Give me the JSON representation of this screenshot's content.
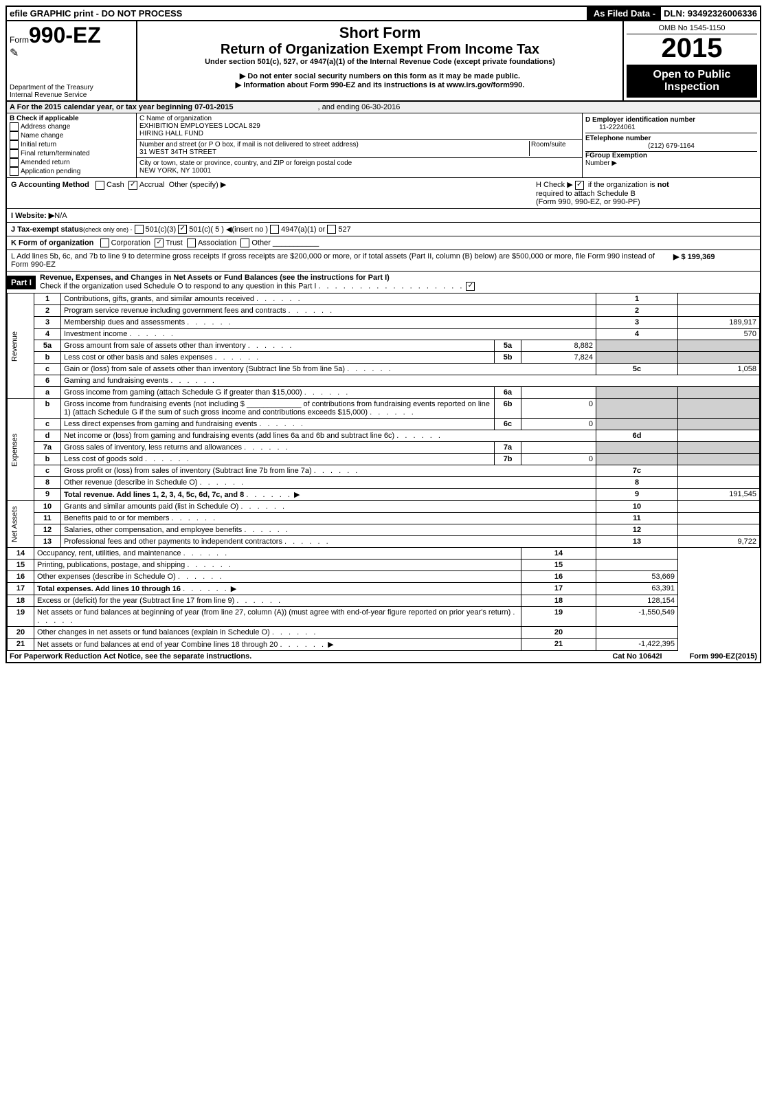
{
  "topbar": {
    "left": "efile GRAPHIC print - DO NOT PROCESS",
    "mid": "As Filed Data -",
    "right": "DLN: 93492326006336"
  },
  "header": {
    "form_prefix": "Form",
    "form_no": "990-EZ",
    "short": "Short Form",
    "return": "Return of Organization Exempt From Income Tax",
    "under": "Under section 501(c), 527, or 4947(a)(1) of the Internal Revenue Code (except private foundations)",
    "warn": "▶ Do not enter social security numbers on this form as it may be made public.",
    "info": "▶ Information about Form 990-EZ and its instructions is at ",
    "info_link": "www.irs.gov/form990",
    "dept1": "Department of the Treasury",
    "dept2": "Internal Revenue Service",
    "omb": "OMB No 1545-1150",
    "year": "2015",
    "open1": "Open to Public",
    "open2": "Inspection"
  },
  "A": {
    "text": "A  For the 2015 calendar year, or tax year beginning 07-01-2015",
    "end": ", and ending 06-30-2016"
  },
  "B": {
    "label": "B  Check if applicable",
    "items": [
      "Address change",
      "Name change",
      "Initial return",
      "Final return/terminated",
      "Amended return",
      "Application pending"
    ]
  },
  "C": {
    "name_label": "C Name of organization",
    "name1": "EXHIBITION EMPLOYEES LOCAL 829",
    "name2": "HIRING HALL FUND",
    "addr_label": "Number and street (or P O box, if mail is not delivered to street address)",
    "room_label": "Room/suite",
    "addr": "31 WEST 34TH STREET",
    "city_label": "City or town, state or province, country, and ZIP or foreign postal code",
    "city": "NEW YORK, NY 10001"
  },
  "D": {
    "label": "D Employer identification number",
    "val": "11-2224061"
  },
  "E": {
    "label": "ETelephone number",
    "val": "(212) 679-1164"
  },
  "F": {
    "label": "FGroup Exemption",
    "label2": "Number  ▶"
  },
  "G": {
    "label": "G Accounting Method",
    "cash": "Cash",
    "accrual": "Accrual",
    "other": "Other (specify) ▶"
  },
  "H": {
    "text1": "H  Check ▶",
    "text2": "if the organization is ",
    "not": "not",
    "text3": "required to attach Schedule B",
    "text4": "(Form 990, 990-EZ, or 990-PF)"
  },
  "I": {
    "label": "I Website: ▶",
    "val": "N/A"
  },
  "J": {
    "label": "J Tax-exempt status",
    "rest": "(check only one) -",
    "o1": "501(c)(3)",
    "o2": "501(c)( 5 ) ◀(insert no )",
    "o3": "4947(a)(1) or",
    "o4": "527"
  },
  "K": {
    "label": "K Form of organization",
    "o1": "Corporation",
    "o2": "Trust",
    "o3": "Association",
    "o4": "Other"
  },
  "L": {
    "text": "L Add lines 5b, 6c, and 7b to line 9 to determine gross receipts  If gross receipts are $200,000 or more, or if total assets (Part II, column (B) below) are $500,000 or more, file Form 990 instead of Form 990-EZ",
    "val": "▶ $ 199,369"
  },
  "partI": {
    "title": "Part I",
    "desc": "Revenue, Expenses, and Changes in Net Assets or Fund Balances (see the instructions for Part I)",
    "check": "Check if the organization used Schedule O to respond to any question in this Part I"
  },
  "sections": {
    "rev": "Revenue",
    "exp": "Expenses",
    "net": "Net Assets"
  },
  "lines": [
    {
      "n": "1",
      "d": "Contributions, gifts, grants, and similar amounts received",
      "r": "1",
      "v": ""
    },
    {
      "n": "2",
      "d": "Program service revenue including government fees and contracts",
      "r": "2",
      "v": ""
    },
    {
      "n": "3",
      "d": "Membership dues and assessments",
      "r": "3",
      "v": "189,917"
    },
    {
      "n": "4",
      "d": "Investment income",
      "r": "4",
      "v": "570"
    },
    {
      "n": "5a",
      "d": "Gross amount from sale of assets other than inventory",
      "sc": "5a",
      "sv": "8,882"
    },
    {
      "n": "b",
      "d": "Less  cost or other basis and sales expenses",
      "sc": "5b",
      "sv": "7,824"
    },
    {
      "n": "c",
      "d": "Gain or (loss) from sale of assets other than inventory (Subtract line 5b from line 5a)",
      "r": "5c",
      "v": "1,058"
    },
    {
      "n": "6",
      "d": "Gaming and fundraising events"
    },
    {
      "n": "a",
      "d": "Gross income from gaming (attach Schedule G if greater than $15,000)",
      "sc": "6a",
      "sv": ""
    },
    {
      "n": "b",
      "d": "Gross income from fundraising events (not including $ _____________ of contributions from fundraising events reported on line 1) (attach Schedule G if the sum of such gross income and contributions exceeds $15,000)",
      "sc": "6b",
      "sv": "0"
    },
    {
      "n": "c",
      "d": "Less  direct expenses from gaming and fundraising events",
      "sc": "6c",
      "sv": "0"
    },
    {
      "n": "d",
      "d": "Net income or (loss) from gaming and fundraising events (add lines 6a and 6b and subtract line 6c)",
      "r": "6d",
      "v": ""
    },
    {
      "n": "7a",
      "d": "Gross sales of inventory, less returns and allowances",
      "sc": "7a",
      "sv": ""
    },
    {
      "n": "b",
      "d": "Less  cost of goods sold",
      "sc": "7b",
      "sv": "0"
    },
    {
      "n": "c",
      "d": "Gross profit or (loss) from sales of inventory (Subtract line 7b from line 7a)",
      "r": "7c",
      "v": ""
    },
    {
      "n": "8",
      "d": "Other revenue (describe in Schedule O)",
      "r": "8",
      "v": ""
    },
    {
      "n": "9",
      "d": "Total revenue. Add lines 1, 2, 3, 4, 5c, 6d, 7c, and 8",
      "r": "9",
      "v": "191,545",
      "bold": true,
      "arrow": true
    },
    {
      "n": "10",
      "d": "Grants and similar amounts paid (list in Schedule O)",
      "r": "10",
      "v": ""
    },
    {
      "n": "11",
      "d": "Benefits paid to or for members",
      "r": "11",
      "v": ""
    },
    {
      "n": "12",
      "d": "Salaries, other compensation, and employee benefits",
      "r": "12",
      "v": ""
    },
    {
      "n": "13",
      "d": "Professional fees and other payments to independent contractors",
      "r": "13",
      "v": "9,722"
    },
    {
      "n": "14",
      "d": "Occupancy, rent, utilities, and maintenance",
      "r": "14",
      "v": ""
    },
    {
      "n": "15",
      "d": "Printing, publications, postage, and shipping",
      "r": "15",
      "v": ""
    },
    {
      "n": "16",
      "d": "Other expenses (describe in Schedule O)",
      "r": "16",
      "v": "53,669"
    },
    {
      "n": "17",
      "d": "Total expenses. Add lines 10 through 16",
      "r": "17",
      "v": "63,391",
      "bold": true,
      "arrow": true
    },
    {
      "n": "18",
      "d": "Excess or (deficit) for the year (Subtract line 17 from line 9)",
      "r": "18",
      "v": "128,154"
    },
    {
      "n": "19",
      "d": "Net assets or fund balances at beginning of year (from line 27, column (A)) (must agree with end-of-year figure reported on prior year's return)",
      "r": "19",
      "v": "-1,550,549"
    },
    {
      "n": "20",
      "d": "Other changes in net assets or fund balances (explain in Schedule O)",
      "r": "20",
      "v": ""
    },
    {
      "n": "21",
      "d": "Net assets or fund balances at end of year  Combine lines 18 through 20",
      "r": "21",
      "v": "-1,422,395",
      "arrow": true
    }
  ],
  "footer": {
    "left": "For Paperwork Reduction Act Notice, see the separate instructions.",
    "mid": "Cat No 10642I",
    "right": "Form",
    "form": "990-EZ",
    "yr": "(2015)"
  }
}
